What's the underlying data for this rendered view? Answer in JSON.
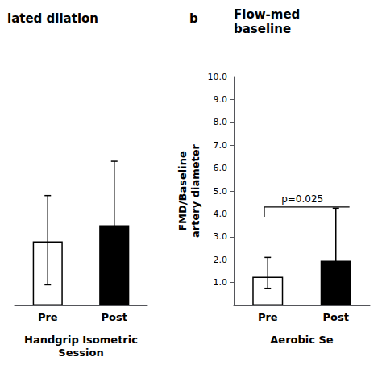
{
  "chart_data": [
    {
      "type": "bar",
      "title": "iated dilation",
      "categories": [
        "Pre",
        "Post"
      ],
      "values": [
        2.8,
        3.5
      ],
      "err_lo": [
        1.9,
        1.5
      ],
      "err_hi": [
        2.0,
        2.8
      ],
      "colors": [
        "white",
        "black"
      ],
      "xlabel": "Handgrip Isometric\nSession",
      "ylim": [
        0,
        10
      ],
      "tick_labels": "x",
      "grid": false
    },
    {
      "type": "bar",
      "title": "b",
      "subtitle": "Flow-med\nbaseline",
      "categories": [
        "Pre",
        "Post"
      ],
      "values": [
        1.25,
        1.95
      ],
      "err_lo": [
        0.5,
        0.4
      ],
      "err_hi": [
        0.85,
        2.3
      ],
      "colors": [
        "white",
        "black"
      ],
      "xlabel": "Aerobic Se",
      "ylabel": "FMD/Baseline\nartery diameter",
      "ylim": [
        0,
        10.0
      ],
      "yticks": [
        {
          "value": 1.0,
          "label": "1.0"
        },
        {
          "value": 2.0,
          "label": "2.0"
        },
        {
          "value": 3.0,
          "label": "3.0"
        },
        {
          "value": 4.0,
          "label": "4.0"
        },
        {
          "value": 5.0,
          "label": "5.0"
        },
        {
          "value": 6.0,
          "label": "6.0"
        },
        {
          "value": 7.0,
          "label": "7.0"
        },
        {
          "value": 8.0,
          "label": "8.0"
        },
        {
          "value": 9.0,
          "label": "9.0"
        },
        {
          "value": 10.0,
          "label": "10.0"
        }
      ],
      "annotations": [
        {
          "text": "p=0.025",
          "y": 4.3
        }
      ],
      "grid": false
    }
  ]
}
